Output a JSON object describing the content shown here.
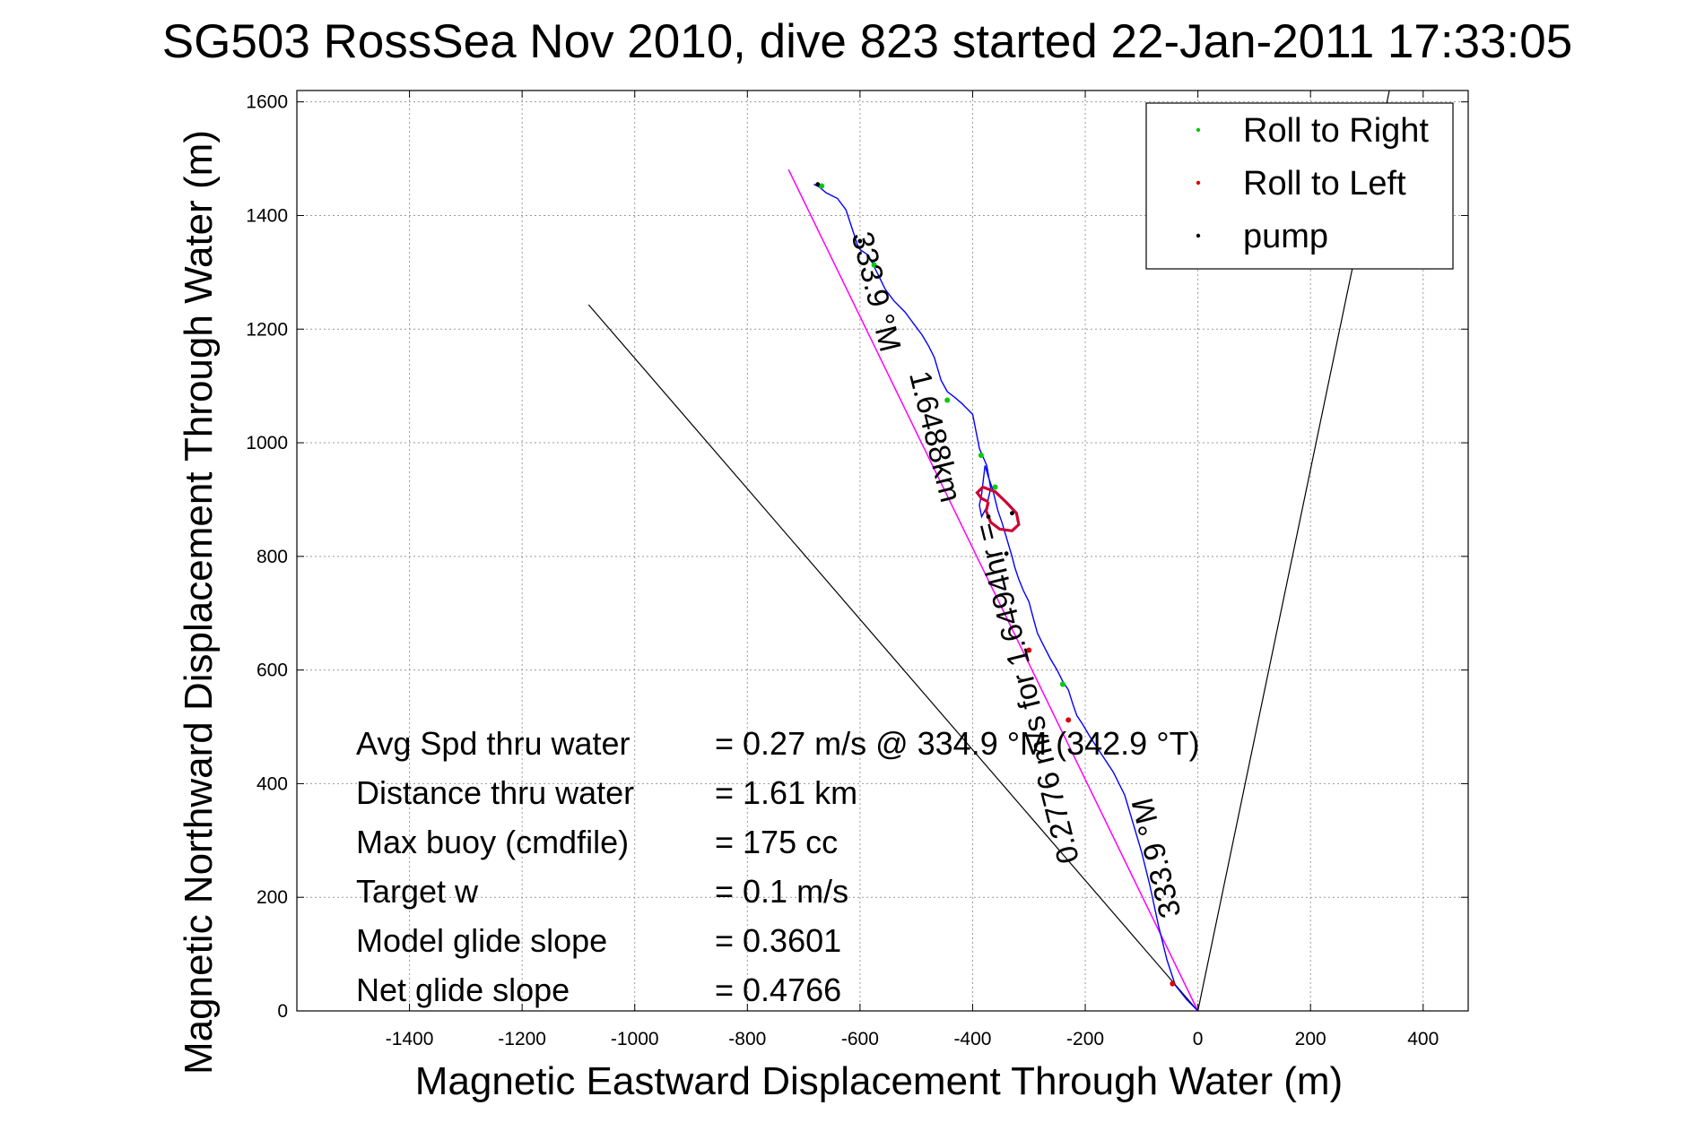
{
  "chart_data": {
    "type": "line",
    "title": "SG503 RossSea Nov 2010, dive 823 started 22-Jan-2011 17:33:05",
    "xlabel": "Magnetic Eastward Displacement Through Water (m)",
    "ylabel": "Magnetic Northward Displacement Through Water (m)",
    "xlim": [
      -1600,
      480
    ],
    "ylim": [
      0,
      1620
    ],
    "xticks": [
      -1400,
      -1200,
      -1000,
      -800,
      -600,
      -400,
      -200,
      0,
      200,
      400
    ],
    "yticks": [
      0,
      200,
      400,
      600,
      800,
      1000,
      1200,
      1400,
      1600
    ],
    "grid": true,
    "legend_position": "top-right",
    "legend": [
      {
        "label": "Roll to Right",
        "color": "#00cc00"
      },
      {
        "label": "Roll to Left",
        "color": "#dd0000"
      },
      {
        "label": "pump",
        "color": "#000000"
      }
    ],
    "track": {
      "color": "#0000ff",
      "x": [
        0,
        -20,
        -40,
        -55,
        -70,
        -85,
        -100,
        -115,
        -130,
        -150,
        -170,
        -190,
        -205,
        -215,
        -222,
        -230,
        -240,
        -250,
        -262,
        -275,
        -285,
        -292,
        -300,
        -310,
        -318,
        -325,
        -330,
        -336,
        -342,
        -348,
        -355,
        -360,
        -365,
        -372,
        -378,
        -384,
        -388,
        -384,
        -376,
        -368,
        -375,
        -388,
        -392,
        -396,
        -400,
        -410,
        -420,
        -432,
        -445,
        -456,
        -462,
        -468,
        -478,
        -490,
        -505,
        -520,
        -540,
        -555,
        -565,
        -575,
        -585,
        -600,
        -605,
        -615,
        -625,
        -640,
        -660,
        -672,
        -682
      ],
      "y": [
        0,
        20,
        45,
        90,
        150,
        220,
        280,
        330,
        380,
        420,
        450,
        480,
        505,
        520,
        540,
        565,
        580,
        600,
        620,
        645,
        665,
        690,
        720,
        740,
        760,
        780,
        800,
        820,
        840,
        860,
        880,
        900,
        920,
        940,
        960,
        910,
        890,
        870,
        885,
        920,
        960,
        990,
        1010,
        1030,
        1050,
        1060,
        1070,
        1080,
        1090,
        1110,
        1130,
        1150,
        1170,
        1190,
        1210,
        1230,
        1250,
        1270,
        1290,
        1310,
        1330,
        1340,
        1350,
        1380,
        1410,
        1430,
        1440,
        1450,
        1455
      ]
    },
    "bearing_line": {
      "label": "333.9 °M",
      "color": "#ff00ff",
      "x": [
        0,
        -727
      ],
      "y": [
        0,
        1481
      ]
    },
    "reference_lines": {
      "color": "#000000",
      "x1": [
        0,
        340
      ],
      "y1": [
        0,
        1620
      ],
      "x2": [
        0,
        -1082
      ],
      "y2": [
        0,
        1243
      ]
    },
    "loop": {
      "color": "#cc0033",
      "x": [
        -372,
        -384,
        -392,
        -382,
        -360,
        -340,
        -322,
        -318,
        -330,
        -352,
        -368,
        -376,
        -372
      ],
      "y": [
        896,
        902,
        912,
        922,
        914,
        895,
        876,
        856,
        845,
        848,
        860,
        880,
        896
      ]
    },
    "roll_right_marks": [
      {
        "x": -668,
        "y": 1452
      },
      {
        "x": -575,
        "y": 1313
      },
      {
        "x": -445,
        "y": 1075
      },
      {
        "x": -385,
        "y": 978
      },
      {
        "x": -360,
        "y": 922
      },
      {
        "x": -240,
        "y": 575
      }
    ],
    "roll_left_marks": [
      {
        "x": -300,
        "y": 635
      },
      {
        "x": -230,
        "y": 512
      },
      {
        "x": -45,
        "y": 48
      }
    ],
    "pump_marks": [
      {
        "x": -675,
        "y": 1455
      },
      {
        "x": -600,
        "y": 1355
      },
      {
        "x": -330,
        "y": 876
      },
      {
        "x": -340,
        "y": 805
      },
      {
        "x": -372,
        "y": 870
      }
    ],
    "annotations": [
      {
        "text": "333.9 °M",
        "x": -575,
        "y": 1265,
        "rotate": 76
      },
      {
        "text": "1.6488km",
        "x": -470,
        "y": 1010,
        "rotate": 76
      },
      {
        "text": "0.2776 m/s for 1.6494hr =",
        "x": -300,
        "y": 560,
        "rotate": -104
      },
      {
        "text": "333.9 °M",
        "x": -70,
        "y": 270,
        "rotate": -104
      }
    ],
    "stats": [
      {
        "label": "Avg Spd thru water",
        "value": "=  0.27 m/s @ 334.9 °M (342.9 °T)"
      },
      {
        "label": "Distance thru water",
        "value": "=  1.61 km"
      },
      {
        "label": "Max buoy (cmdfile)",
        "value": "= 175 cc"
      },
      {
        "label": "Target w",
        "value": "= 0.1 m/s"
      },
      {
        "label": "Model glide slope",
        "value": "= 0.3601"
      },
      {
        "label": "Net glide slope",
        "value": "= 0.4766"
      }
    ]
  }
}
